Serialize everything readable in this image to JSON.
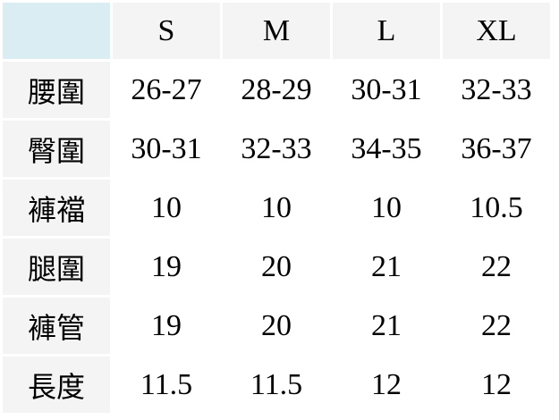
{
  "colors": {
    "corner": "#daedf3",
    "header": "#f4f4f4",
    "row_header": "#f4f4f4"
  },
  "sizes": [
    "S",
    "M",
    "L",
    "XL"
  ],
  "rows": [
    {
      "label": "腰圍",
      "values": [
        "26-27",
        "28-29",
        "30-31",
        "32-33"
      ]
    },
    {
      "label": "臀圍",
      "values": [
        "30-31",
        "32-33",
        "34-35",
        "36-37"
      ]
    },
    {
      "label": "褲襠",
      "values": [
        "10",
        "10",
        "10",
        "10.5"
      ]
    },
    {
      "label": "腿圍",
      "values": [
        "19",
        "20",
        "21",
        "22"
      ]
    },
    {
      "label": "褲管",
      "values": [
        "19",
        "20",
        "21",
        "22"
      ]
    },
    {
      "label": "長度",
      "values": [
        "11.5",
        "11.5",
        "12",
        "12"
      ]
    }
  ]
}
